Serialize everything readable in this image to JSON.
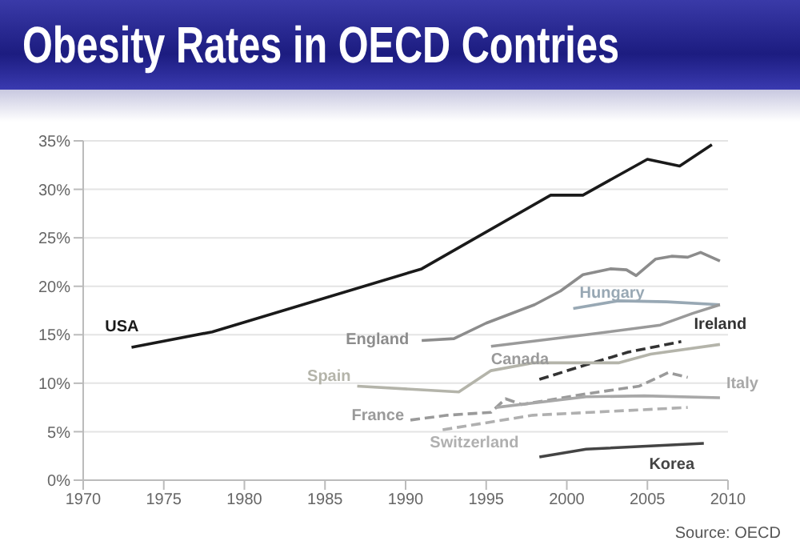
{
  "chart_data": {
    "type": "line",
    "title": "Obesity Rates in OECD Contries",
    "annotations": [
      "Source: OECD"
    ],
    "xlim": [
      1970,
      2010
    ],
    "xticks": [
      1970,
      1975,
      1980,
      1985,
      1990,
      1995,
      2000,
      2005,
      2010
    ],
    "ylim": [
      0,
      35
    ],
    "yticks": [
      {
        "value": 0,
        "label": "0%"
      },
      {
        "value": 5,
        "label": "5%"
      },
      {
        "value": 10,
        "label": "10%"
      },
      {
        "value": 15,
        "label": "15%"
      },
      {
        "value": 20,
        "label": "20%"
      },
      {
        "value": 25,
        "label": "25%"
      },
      {
        "value": 30,
        "label": "30%"
      },
      {
        "value": 35,
        "label": "35%"
      }
    ],
    "grid": "y",
    "legend": false,
    "marker": "none",
    "series": [
      {
        "name": "USA",
        "color": "#1a1a1a",
        "line_style": "solid",
        "x": [
          1973,
          1978,
          1991,
          1999,
          2001,
          2005,
          2007,
          2009
        ],
        "values": [
          13.7,
          15.3,
          21.8,
          29.4,
          29.4,
          33.1,
          32.4,
          34.6
        ]
      },
      {
        "name": "England",
        "color": "#8c8c8c",
        "line_style": "solid",
        "x": [
          1991,
          1993,
          1995,
          1998,
          1999.6,
          2001,
          2002.7,
          2003.7,
          2004.3,
          2005.5,
          2006.5,
          2007.5,
          2008.3,
          2009.5
        ],
        "values": [
          14.4,
          14.6,
          16.2,
          18.1,
          19.5,
          21.2,
          21.8,
          21.7,
          21.1,
          22.8,
          23.1,
          23.0,
          23.5,
          22.6
        ]
      },
      {
        "name": "Hungary",
        "color": "#98a8b4",
        "line_style": "solid",
        "x": [
          2000.4,
          2003.2,
          2006.2,
          2009.5
        ],
        "values": [
          17.7,
          18.5,
          18.4,
          18.1
        ]
      },
      {
        "name": "Canada",
        "color": "#9a9a9a",
        "line_style": "solid",
        "x": [
          1995.3,
          2001.2,
          2005.8,
          2007.8,
          2009.5
        ],
        "values": [
          13.8,
          15.0,
          16.0,
          17.2,
          18.1
        ]
      },
      {
        "name": "Ireland",
        "color": "#333333",
        "line_style": "dashed",
        "x": [
          1998.3,
          2001.2,
          2003.8,
          2007.1
        ],
        "values": [
          10.4,
          11.9,
          13.2,
          14.3
        ]
      },
      {
        "name": "Spain",
        "color": "#b4b4aa",
        "line_style": "solid",
        "x": [
          1987,
          1993.3,
          1995.3,
          1997.9,
          2003.2,
          2005.2,
          2009.5
        ],
        "values": [
          9.7,
          9.1,
          11.3,
          12.1,
          12.1,
          13.0,
          14.0
        ]
      },
      {
        "name": "France",
        "color": "#9a9a9a",
        "line_style": "dashed",
        "x": [
          1990.3,
          1992.6,
          1995.3,
          1996.2,
          1997.2,
          2001.2,
          2004.5,
          2006.3,
          2007.5
        ],
        "values": [
          6.2,
          6.7,
          7.0,
          8.4,
          7.8,
          8.9,
          9.7,
          11.1,
          10.6
        ]
      },
      {
        "name": "Italy",
        "color": "#a8a8a8",
        "line_style": "solid",
        "x": [
          1995.6,
          2001.2,
          2004.8,
          2009.5
        ],
        "values": [
          7.5,
          8.6,
          8.7,
          8.5
        ]
      },
      {
        "name": "Switzerland",
        "color": "#b0b0b0",
        "line_style": "dashed",
        "x": [
          1992.3,
          1997.9,
          2007.5
        ],
        "values": [
          5.2,
          6.7,
          7.5
        ]
      },
      {
        "name": "Korea",
        "color": "#444444",
        "line_style": "solid",
        "x": [
          1998.3,
          2001.2,
          2008.5
        ],
        "values": [
          2.4,
          3.2,
          3.8
        ]
      }
    ]
  }
}
